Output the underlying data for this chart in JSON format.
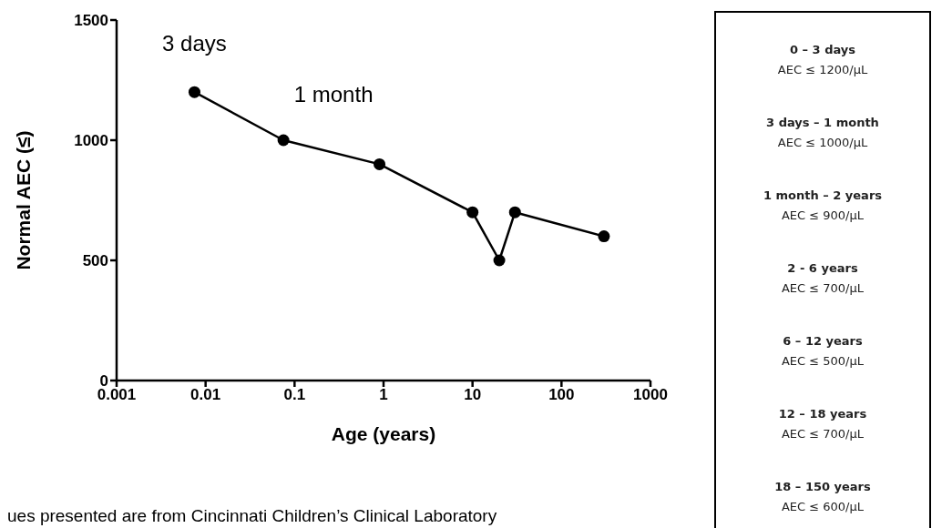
{
  "chart_data": [
    {
      "type": "line",
      "xlabel": "Age (years)",
      "ylabel": "Normal AEC (≤)",
      "x": [
        0.0075,
        0.075,
        0.9,
        10,
        20,
        30,
        300
      ],
      "series": [
        {
          "color": "#000000",
          "values": [
            1200,
            1000,
            900,
            700,
            500,
            700,
            600
          ]
        }
      ],
      "log": "x",
      "xlim": [
        0.001,
        1000
      ],
      "xticks": [
        0.001,
        0.01,
        0.1,
        1,
        10,
        100,
        1000
      ],
      "ylim": [
        0,
        1500
      ],
      "yticks": [
        0,
        500,
        1000,
        1500
      ],
      "grid": false,
      "marker": "circle",
      "line_style": "solid",
      "annotations": [
        {
          "text": "3 days",
          "x": 0.0075,
          "y": 1200
        },
        {
          "text": "1 month",
          "x": 0.075,
          "y": 1000
        },
        "ues presented are from Cincinnati Children’s Clinical Laboratory"
      ]
    },
    {
      "type": "other",
      "annotations": [
        "0 – 3 days",
        "AEC ≤ 1200/μL",
        "3 days – 1 month",
        "AEC ≤ 1000/μL",
        "1 month – 2 years",
        "AEC ≤ 900/μL",
        "2 - 6 years",
        "AEC ≤ 700/μL",
        "6 – 12 years",
        "AEC ≤ 500/μL",
        "12 – 18 years",
        "AEC ≤ 700/μL",
        "18 – 150 years",
        "AEC ≤ 600/μL"
      ]
    }
  ]
}
